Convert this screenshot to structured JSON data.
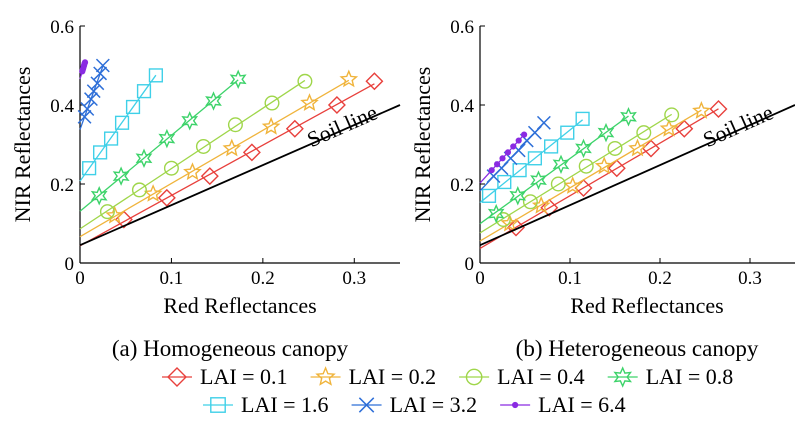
{
  "chart_data": [
    {
      "type": "line",
      "caption": "(a) Homogeneous canopy",
      "xlabel": "Red Reflectances",
      "ylabel": "NIR Reflectances",
      "xlim": [
        0,
        0.35
      ],
      "ylim": [
        0,
        0.6
      ],
      "xticks": [
        "0",
        "0.1",
        "0.2",
        "0.3"
      ],
      "yticks": [
        "0",
        "0.2",
        "0.4",
        "0.6"
      ],
      "annotation": "Soil line",
      "soil_line": {
        "x": [
          0,
          0.35
        ],
        "y": [
          0.045,
          0.4
        ]
      },
      "series": [
        {
          "name": "LAI = 0.1",
          "x": [
            0.048,
            0.095,
            0.142,
            0.188,
            0.235,
            0.281,
            0.322
          ],
          "y": [
            0.11,
            0.165,
            0.22,
            0.28,
            0.34,
            0.4,
            0.46
          ]
        },
        {
          "name": "LAI = 0.2",
          "x": [
            0.038,
            0.08,
            0.123,
            0.166,
            0.209,
            0.251,
            0.294
          ],
          "y": [
            0.12,
            0.175,
            0.23,
            0.29,
            0.345,
            0.405,
            0.465
          ]
        },
        {
          "name": "LAI = 0.4",
          "x": [
            0.03,
            0.065,
            0.1,
            0.135,
            0.17,
            0.21,
            0.246
          ],
          "y": [
            0.13,
            0.185,
            0.24,
            0.295,
            0.35,
            0.405,
            0.46
          ]
        },
        {
          "name": "LAI = 0.8",
          "x": [
            0.021,
            0.045,
            0.07,
            0.095,
            0.12,
            0.146,
            0.173
          ],
          "y": [
            0.17,
            0.22,
            0.265,
            0.315,
            0.36,
            0.41,
            0.465
          ]
        },
        {
          "name": "LAI = 1.6",
          "x": [
            0.01,
            0.022,
            0.034,
            0.046,
            0.058,
            0.07,
            0.083
          ],
          "y": [
            0.24,
            0.28,
            0.315,
            0.355,
            0.395,
            0.435,
            0.475
          ]
        },
        {
          "name": "LAI = 3.2",
          "x": [
            0.005,
            0.008,
            0.012,
            0.015,
            0.019,
            0.022,
            0.025
          ],
          "y": [
            0.37,
            0.39,
            0.415,
            0.435,
            0.455,
            0.48,
            0.5
          ]
        },
        {
          "name": "LAI = 6.4",
          "x": [
            0.0025,
            0.003,
            0.0035,
            0.004,
            0.0045,
            0.005,
            0.0055
          ],
          "y": [
            0.485,
            0.489,
            0.493,
            0.497,
            0.501,
            0.505,
            0.508
          ]
        }
      ]
    },
    {
      "type": "line",
      "caption": "(b) Heterogeneous canopy",
      "xlabel": "Red Reflectances",
      "ylabel": "NIR Reflectances",
      "xlim": [
        0,
        0.35
      ],
      "ylim": [
        0,
        0.6
      ],
      "xticks": [
        "0",
        "0.1",
        "0.2",
        "0.3"
      ],
      "yticks": [
        "0",
        "0.2",
        "0.4",
        "0.6"
      ],
      "annotation": "Soil line",
      "soil_line": {
        "x": [
          0,
          0.35
        ],
        "y": [
          0.045,
          0.4
        ]
      },
      "series": [
        {
          "name": "LAI = 0.1",
          "x": [
            0.04,
            0.077,
            0.115,
            0.152,
            0.19,
            0.227,
            0.265
          ],
          "y": [
            0.09,
            0.14,
            0.19,
            0.24,
            0.29,
            0.34,
            0.39
          ]
        },
        {
          "name": "LAI = 0.2",
          "x": [
            0.033,
            0.068,
            0.103,
            0.138,
            0.175,
            0.21,
            0.246
          ],
          "y": [
            0.1,
            0.145,
            0.195,
            0.245,
            0.29,
            0.34,
            0.385
          ]
        },
        {
          "name": "LAI = 0.4",
          "x": [
            0.026,
            0.056,
            0.087,
            0.118,
            0.15,
            0.182,
            0.213
          ],
          "y": [
            0.11,
            0.155,
            0.2,
            0.245,
            0.29,
            0.33,
            0.375
          ]
        },
        {
          "name": "LAI = 0.8",
          "x": [
            0.018,
            0.042,
            0.065,
            0.09,
            0.115,
            0.14,
            0.165
          ],
          "y": [
            0.125,
            0.17,
            0.21,
            0.25,
            0.29,
            0.33,
            0.37
          ]
        },
        {
          "name": "LAI = 1.6",
          "x": [
            0.01,
            0.027,
            0.044,
            0.061,
            0.079,
            0.097,
            0.114
          ],
          "y": [
            0.17,
            0.205,
            0.235,
            0.265,
            0.295,
            0.33,
            0.365
          ]
        },
        {
          "name": "LAI = 3.2",
          "x": [
            0.015,
            0.024,
            0.034,
            0.043,
            0.052,
            0.061,
            0.071
          ],
          "y": [
            0.22,
            0.24,
            0.265,
            0.285,
            0.31,
            0.33,
            0.355
          ]
        },
        {
          "name": "LAI = 6.4",
          "x": [
            0.013,
            0.019,
            0.025,
            0.031,
            0.037,
            0.043,
            0.049
          ],
          "y": [
            0.235,
            0.25,
            0.265,
            0.28,
            0.295,
            0.31,
            0.325
          ]
        }
      ]
    }
  ],
  "legend": [
    {
      "label": "LAI = 0.1",
      "color": "#e8403c",
      "marker": "diamond"
    },
    {
      "label": "LAI = 0.2",
      "color": "#f0b43c",
      "marker": "star5"
    },
    {
      "label": "LAI = 0.4",
      "color": "#9fd64a",
      "marker": "circle"
    },
    {
      "label": "LAI = 0.8",
      "color": "#3dd36a",
      "marker": "star6"
    },
    {
      "label": "LAI = 1.6",
      "color": "#3fd0e8",
      "marker": "square"
    },
    {
      "label": "LAI = 3.2",
      "color": "#2e6fd8",
      "marker": "x"
    },
    {
      "label": "LAI = 6.4",
      "color": "#8a2be2",
      "marker": "dot"
    }
  ]
}
